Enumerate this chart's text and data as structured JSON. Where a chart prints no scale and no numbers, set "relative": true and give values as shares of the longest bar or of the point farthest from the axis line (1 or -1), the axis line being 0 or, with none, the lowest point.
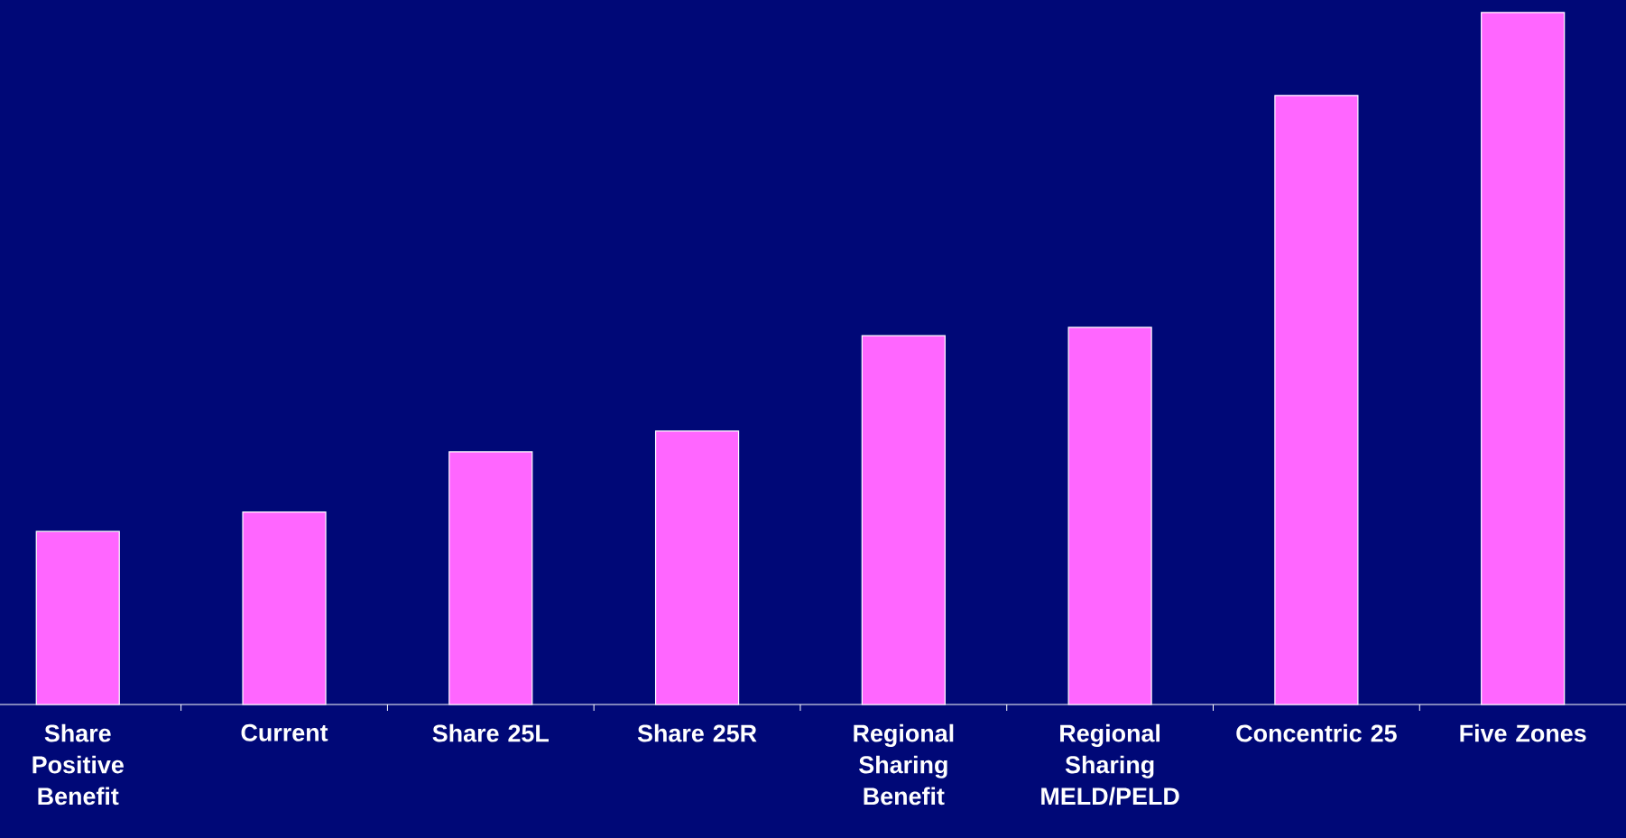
{
  "chart_data": {
    "type": "bar",
    "relative": true,
    "categories": [
      "Share Positive Benefit",
      "Current",
      "Share 25L",
      "Share 25R",
      "Regional Sharing Benefit",
      "Regional Sharing MELD/PELD",
      "Concentric 25",
      "Five Zones"
    ],
    "values": [
      0.25,
      0.278,
      0.365,
      0.395,
      0.533,
      0.545,
      0.88,
      1
    ],
    "color": "#ff66ff"
  }
}
